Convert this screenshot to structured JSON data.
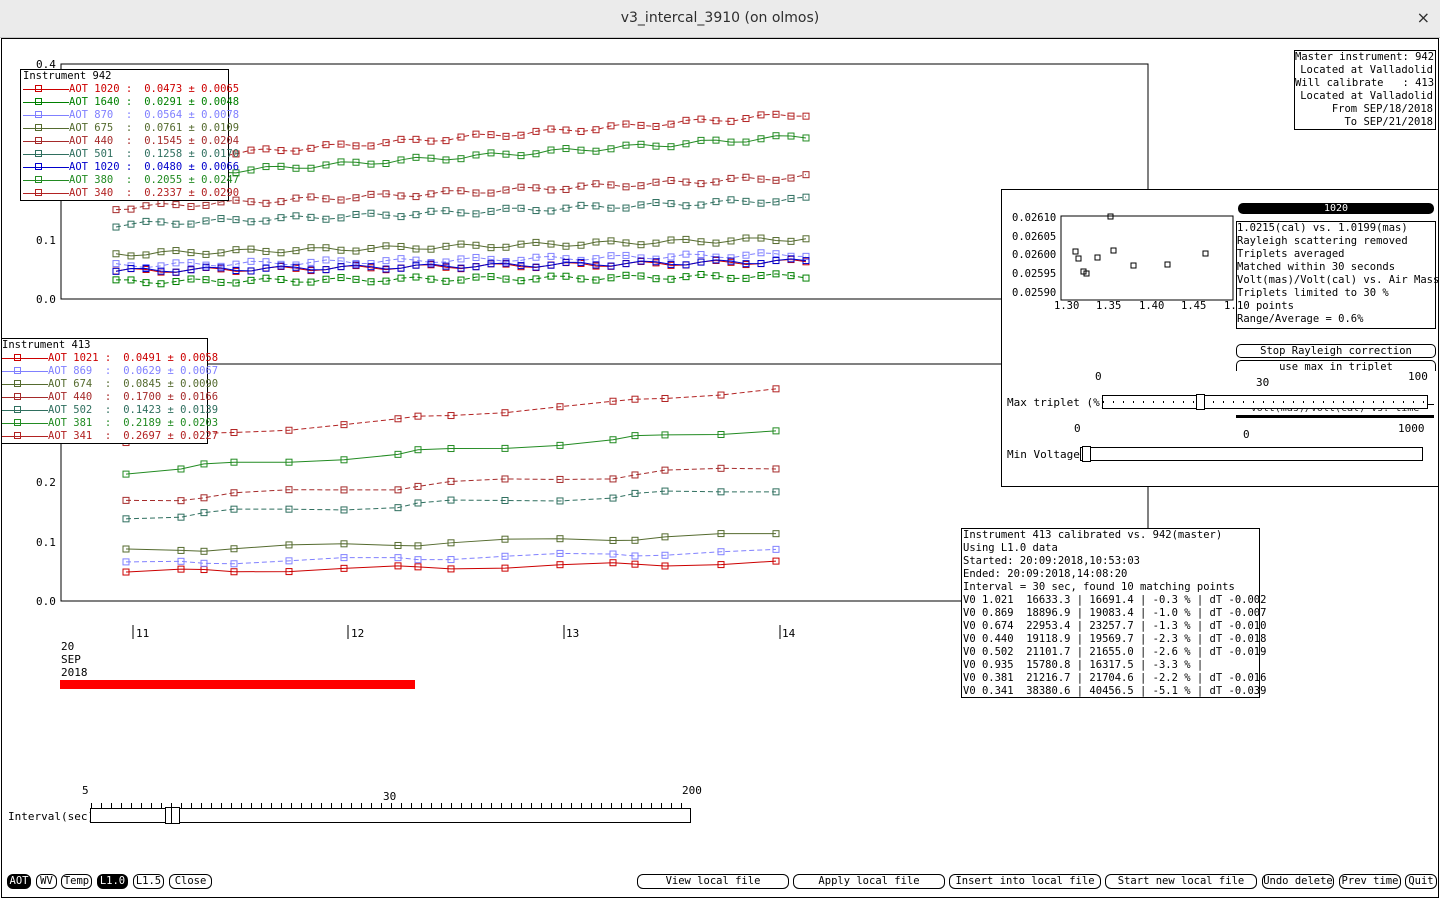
{
  "window": {
    "title": "v3_intercal_3910 (on olmos)",
    "close_glyph": "×"
  },
  "top_plot": {
    "y_ticks": [
      "0.4",
      "0.1",
      "0.0"
    ],
    "legend_title": "Instrument 942",
    "legend": [
      {
        "label": "AOT 1020 :",
        "value": "0.0473 ± 0.0065",
        "color": "#cc0000"
      },
      {
        "label": "AOT 1640 :",
        "value": "0.0291 ± 0.0048",
        "color": "#008000"
      },
      {
        "label": "AOT 870  :",
        "value": "0.0564 ± 0.0078",
        "color": "#8080ff"
      },
      {
        "label": "AOT 675  :",
        "value": "0.0761 ± 0.0109",
        "color": "#556b2f"
      },
      {
        "label": "AOT 440  :",
        "value": "0.1545 ± 0.0204",
        "color": "#a52a2a"
      },
      {
        "label": "AOT 501  :",
        "value": "0.1258 ± 0.0170",
        "color": "#2f6f5f"
      },
      {
        "label": "AOT 1020 :",
        "value": "0.0480 ± 0.0066",
        "color": "#0000cc"
      },
      {
        "label": "AOT 380  :",
        "value": "0.2055 ± 0.0247",
        "color": "#228b22"
      },
      {
        "label": "AOT 340  :",
        "value": "0.2337 ± 0.0290",
        "color": "#b22222"
      }
    ]
  },
  "bottom_plot": {
    "y_ticks": [
      "0.2",
      "0.1",
      "0.0"
    ],
    "legend_title": "Instrument 413",
    "legend": [
      {
        "label": "AOT 1021 :",
        "value": "0.0491 ± 0.0058",
        "color": "#cc0000"
      },
      {
        "label": "AOT 869  :",
        "value": "0.0629 ± 0.0067",
        "color": "#8080ff"
      },
      {
        "label": "AOT 674  :",
        "value": "0.0845 ± 0.0090",
        "color": "#556b2f"
      },
      {
        "label": "AOT 440  :",
        "value": "0.1700 ± 0.0166",
        "color": "#a52a2a"
      },
      {
        "label": "AOT 502  :",
        "value": "0.1423 ± 0.0139",
        "color": "#2f6f5f"
      },
      {
        "label": "AOT 381  :",
        "value": "0.2189 ± 0.0203",
        "color": "#228b22"
      },
      {
        "label": "AOT 341  :",
        "value": "0.2697 ± 0.0227",
        "color": "#b22222"
      }
    ],
    "x_ticks": [
      "11",
      "12",
      "13",
      "14"
    ],
    "date_label": [
      "20",
      "SEP",
      "2018"
    ]
  },
  "master_info": [
    "Master instrument: 942",
    "Located at Valladolid",
    "Will calibrate   : 413",
    "Located at Valladolid",
    "From SEP/18/2018",
    "To SEP/21/2018"
  ],
  "scatter_panel": {
    "y_ticks": [
      "0.02610",
      "0.02605",
      "0.02600",
      "0.02595",
      "0.02590"
    ],
    "x_ticks": [
      "1.30",
      "1.35",
      "1.40",
      "1.45",
      "1."
    ],
    "header": "1020",
    "info": [
      "1.0215(cal) vs. 1.0199(mas)",
      "Rayleigh scattering removed",
      "Triplets averaged",
      "Matched within 30 seconds",
      "Volt(mas)/Volt(cal) vs. Air Mass",
      "Triplets limited to 30 %",
      "10 points",
      "Range/Average = 0.6%"
    ],
    "btn_stop_rayleigh": "Stop Rayleigh correction",
    "btn_use_max": "use max in triplet",
    "btn_hidden": "Volt(mas)/Volt(cal) vs. time",
    "max_triplet": {
      "label": "Max triplet (%)",
      "min": "0",
      "mid": "30",
      "max": "100",
      "value": 30
    },
    "min_voltage": {
      "label": "Min Voltage",
      "min": "0",
      "mid": "0",
      "max": "1000",
      "value": 0
    }
  },
  "calib_info": [
    "Instrument 413 calibrated vs. 942(master)",
    "Using L1.0 data",
    "Started: 20:09:2018,10:53:03",
    "Ended: 20:09:2018,14:08:20",
    "Interval = 30 sec, found 10 matching points",
    "V0 1.021  16633.3 | 16691.4 | -0.3 % | dT -0.002",
    "V0 0.869  18896.9 | 19083.4 | -1.0 % | dT -0.007",
    "V0 0.674  22953.4 | 23257.7 | -1.3 % | dT -0.010",
    "V0 0.440  19118.9 | 19569.7 | -2.3 % | dT -0.018",
    "V0 0.502  21101.7 | 21655.0 | -2.6 % | dT -0.019",
    "V0 0.935  15780.8 | 16317.5 | -3.3 % |",
    "V0 0.381  21216.7 | 21704.6 | -2.2 % | dT -0.016",
    "V0 0.341  38380.6 | 40456.5 | -5.1 % | dT -0.039"
  ],
  "interval_slider": {
    "label": "Interval(sec)",
    "min": "5",
    "mid": "30",
    "max": "200",
    "value": 30
  },
  "bottom_buttons": {
    "aot": "AOT",
    "wv": "WV",
    "temp": "Temp",
    "l10": "L1.0",
    "l15": "L1.5",
    "close": "Close",
    "view_local": "View local file",
    "apply_local": "Apply local file",
    "insert_local": "Insert into local file",
    "start_new": "Start new local file",
    "undo_delete": "Undo delete",
    "prev_time": "Prev time",
    "quit": "Quit"
  }
}
